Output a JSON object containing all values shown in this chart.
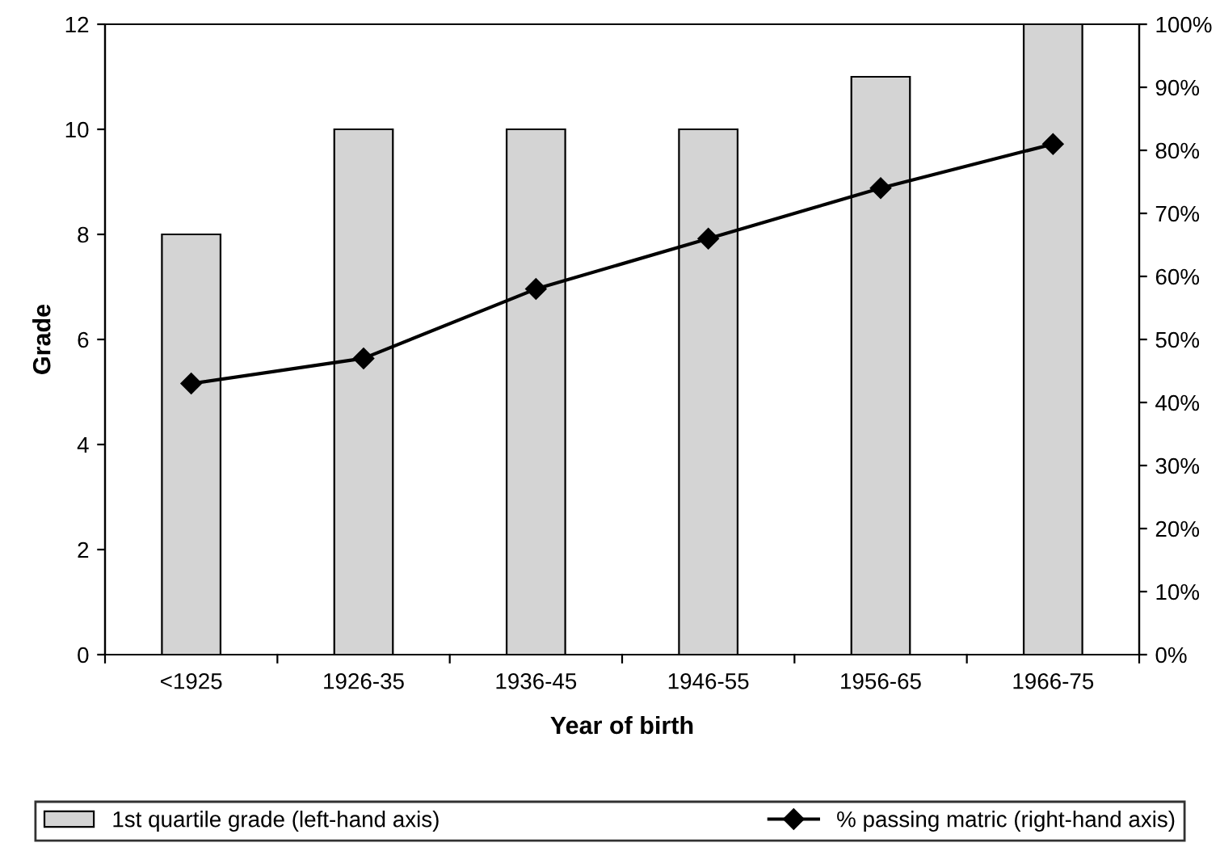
{
  "chart_data": {
    "type": "bar",
    "xlabel": "Year of birth",
    "ylabel": "Grade",
    "categories": [
      "<1925",
      "1926-35",
      "1936-45",
      "1946-55",
      "1956-65",
      "1966-75"
    ],
    "series": [
      {
        "name": "1st quartile grade (left-hand axis)",
        "color": "#d4d4d4",
        "values": [
          8,
          10,
          10,
          10,
          11,
          12
        ]
      },
      {
        "name": "% passing matric (right-hand axis)",
        "type": "line",
        "axis": "y2",
        "color": "#000000",
        "marker": "diamond",
        "values": [
          43,
          47,
          58,
          66,
          74,
          81
        ]
      }
    ],
    "ylim": [
      0,
      12
    ],
    "yticks": [
      0,
      2,
      4,
      6,
      8,
      10,
      12
    ],
    "y2lim": [
      0,
      100
    ],
    "y2ticks": [
      {
        "value": 0,
        "label": "0%"
      },
      {
        "value": 10,
        "label": "10%"
      },
      {
        "value": 20,
        "label": "20%"
      },
      {
        "value": 30,
        "label": "30%"
      },
      {
        "value": 40,
        "label": "40%"
      },
      {
        "value": 50,
        "label": "50%"
      },
      {
        "value": 60,
        "label": "60%"
      },
      {
        "value": 70,
        "label": "70%"
      },
      {
        "value": 80,
        "label": "80%"
      },
      {
        "value": 90,
        "label": "90%"
      },
      {
        "value": 100,
        "label": "100%"
      }
    ],
    "grid": false,
    "legend": "bottom"
  }
}
